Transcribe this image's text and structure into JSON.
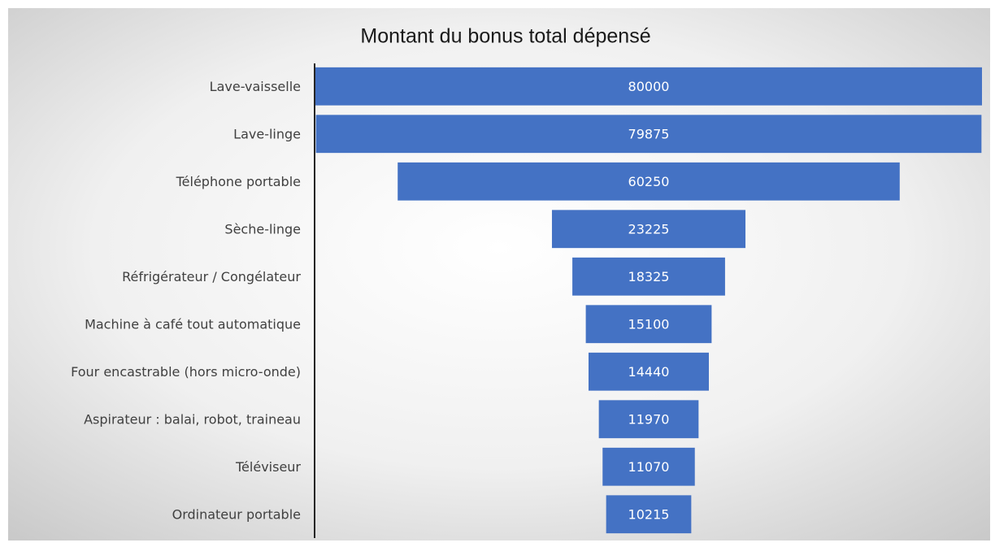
{
  "chart_data": {
    "type": "funnel",
    "title": "Montant du bonus total dépensé",
    "categories": [
      "Lave-vaisselle",
      "Lave-linge",
      "Téléphone portable",
      "Sèche-linge",
      "Réfrigérateur / Congélateur",
      "Machine à café tout automatique",
      "Four encastrable (hors micro-onde)",
      "Aspirateur : balai, robot, traineau",
      "Téléviseur",
      "Ordinateur portable"
    ],
    "values": [
      80000,
      79875,
      60250,
      23225,
      18325,
      15100,
      14440,
      11970,
      11070,
      10215
    ],
    "color": "#4472c4"
  }
}
